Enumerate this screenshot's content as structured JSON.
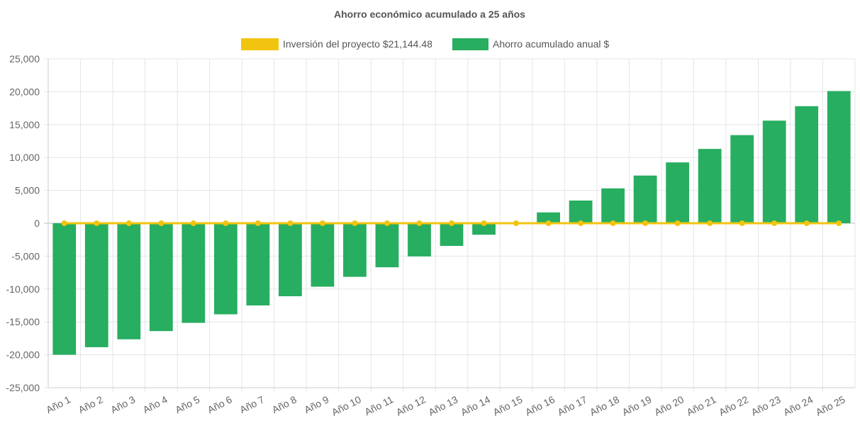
{
  "chart_data": {
    "type": "bar",
    "title": "Ahorro económico acumulado a 25 años",
    "legend_placement": "top-center",
    "grid": true,
    "ylim": [
      -25000,
      25000
    ],
    "yticks": [
      25000,
      20000,
      15000,
      10000,
      5000,
      0,
      -5000,
      -10000,
      -15000,
      -20000,
      -25000
    ],
    "ytick_labels": [
      "25,000",
      "20,000",
      "15,000",
      "10,000",
      "5,000",
      "0",
      "-5,000",
      "-10,000",
      "-15,000",
      "-20,000",
      "-25,000"
    ],
    "categories": [
      "Año 1",
      "Año 2",
      "Año 3",
      "Año 4",
      "Año 5",
      "Año 6",
      "Año 7",
      "Año 8",
      "Año 9",
      "Año 10",
      "Año 11",
      "Año 12",
      "Año 13",
      "Año 14",
      "Año 15",
      "Año 16",
      "Año 17",
      "Año 18",
      "Año 19",
      "Año 20",
      "Año 21",
      "Año 22",
      "Año 23",
      "Año 24",
      "Año 25"
    ],
    "series": [
      {
        "name": "Inversión del proyecto $21,144.48",
        "type": "line",
        "color": "#f1c40f",
        "values": [
          0,
          0,
          0,
          0,
          0,
          0,
          0,
          0,
          0,
          0,
          0,
          0,
          0,
          0,
          0,
          0,
          0,
          0,
          0,
          0,
          0,
          0,
          0,
          0,
          0
        ]
      },
      {
        "name": "Ahorro acumulado anual $",
        "type": "bar",
        "color": "#27ae60",
        "values": [
          -20000,
          -18850,
          -17650,
          -16400,
          -15150,
          -13850,
          -12500,
          -11100,
          -9650,
          -8150,
          -6700,
          -5050,
          -3450,
          -1750,
          0,
          1650,
          3450,
          5300,
          7250,
          9250,
          11300,
          13400,
          15600,
          17800,
          20100
        ]
      }
    ]
  }
}
